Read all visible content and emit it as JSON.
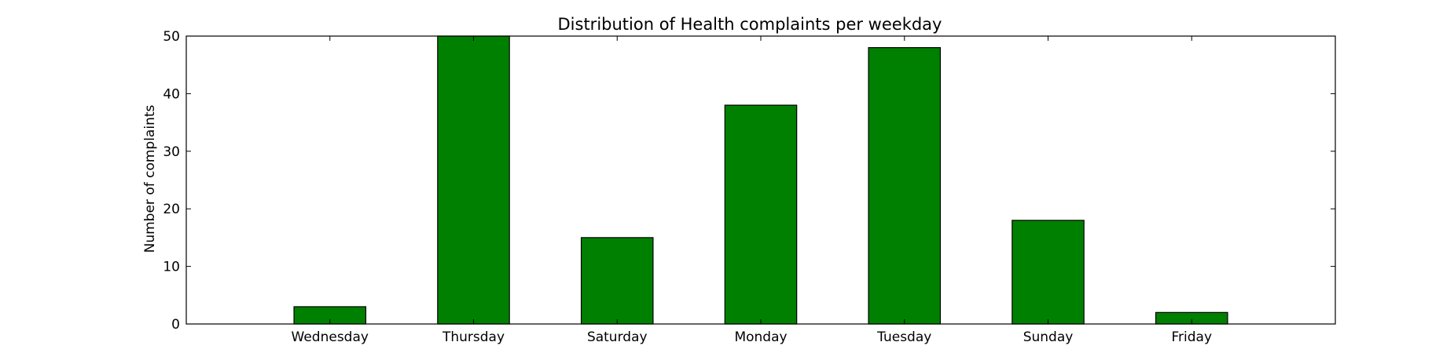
{
  "chart_data": {
    "type": "bar",
    "title": "Distribution of  Health complaints per weekday",
    "xlabel": "",
    "ylabel": "Number of complaints",
    "categories": [
      "Wednesday",
      "Thursday",
      "Saturday",
      "Monday",
      "Tuesday",
      "Sunday",
      "Friday"
    ],
    "values": [
      3,
      50,
      15,
      38,
      48,
      18,
      2
    ],
    "ylim": [
      0,
      50
    ],
    "yticks": [
      0,
      10,
      20,
      30,
      40,
      50
    ],
    "grid": false,
    "bar_color": "#008000",
    "edge_color": "#000000"
  }
}
